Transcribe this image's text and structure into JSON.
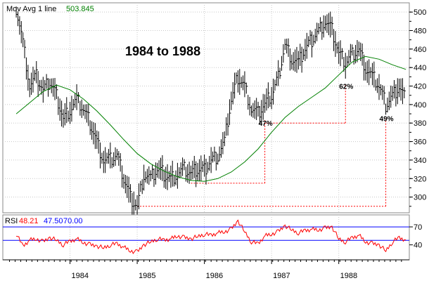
{
  "chart_data": [
    {
      "type": "line",
      "title": "1984 to 1988",
      "legend": {
        "label": "Mov Avg 1 line",
        "value": "503.845",
        "placement": "top-left"
      },
      "x_ticks": [
        "1984",
        "1985",
        "1986",
        "1987",
        "1988"
      ],
      "y_ticks": [
        "300",
        "320",
        "340",
        "360",
        "380",
        "400",
        "420",
        "440",
        "460",
        "480",
        "500"
      ],
      "ylim": [
        283,
        510
      ],
      "grid": true,
      "series": [
        {
          "name": "Mov Avg 1 line",
          "kind": "moving-average",
          "color": "#008000",
          "x": [
            1983.2,
            1983.4,
            1983.6,
            1983.8,
            1984.0,
            1984.2,
            1984.4,
            1984.6,
            1984.8,
            1985.0,
            1985.2,
            1985.4,
            1985.6,
            1985.8,
            1986.0,
            1986.2,
            1986.4,
            1986.6,
            1986.8,
            1987.0,
            1987.2,
            1987.4,
            1987.6,
            1987.8,
            1988.0,
            1988.2,
            1988.4,
            1988.6,
            1988.8,
            1989.0
          ],
          "values": [
            390,
            402,
            414,
            421,
            416,
            406,
            393,
            378,
            362,
            347,
            336,
            328,
            322,
            318,
            317,
            320,
            327,
            338,
            352,
            370,
            386,
            398,
            408,
            418,
            432,
            446,
            452,
            449,
            443,
            438
          ]
        },
        {
          "name": "Price",
          "kind": "bars",
          "color": "#000000",
          "x": [
            1983.2,
            1983.3,
            1983.4,
            1983.5,
            1983.6,
            1983.7,
            1983.8,
            1983.9,
            1984.0,
            1984.1,
            1984.2,
            1984.3,
            1984.4,
            1984.5,
            1984.6,
            1984.7,
            1984.8,
            1984.9,
            1985.0,
            1985.1,
            1985.2,
            1985.3,
            1985.4,
            1985.5,
            1985.6,
            1985.7,
            1985.8,
            1985.9,
            1986.0,
            1986.1,
            1986.2,
            1986.3,
            1986.4,
            1986.5,
            1986.6,
            1986.7,
            1986.8,
            1986.9,
            1987.0,
            1987.1,
            1987.2,
            1987.3,
            1987.4,
            1987.5,
            1987.6,
            1987.7,
            1987.8,
            1987.9,
            1988.0,
            1988.1,
            1988.2,
            1988.3,
            1988.4,
            1988.5,
            1988.6,
            1988.7,
            1988.8,
            1988.9,
            1989.0
          ],
          "values": [
            505,
            468,
            420,
            430,
            415,
            425,
            410,
            385,
            395,
            405,
            395,
            380,
            360,
            340,
            340,
            345,
            320,
            300,
            290,
            325,
            320,
            330,
            325,
            320,
            325,
            330,
            325,
            330,
            330,
            340,
            345,
            360,
            405,
            430,
            420,
            395,
            390,
            400,
            410,
            430,
            465,
            450,
            445,
            460,
            470,
            480,
            490,
            480,
            455,
            445,
            455,
            460,
            440,
            430,
            420,
            400,
            410,
            420,
            405
          ]
        }
      ],
      "annotations": [
        {
          "label": "47%",
          "x": 1986.9,
          "y": 380
        },
        {
          "label": "62%",
          "x": 1988.1,
          "y": 420
        },
        {
          "label": "49%",
          "x": 1988.7,
          "y": 385
        }
      ],
      "guides": [
        {
          "color": "#ff0000",
          "style": "dotted",
          "from": {
            "x": 1985.8,
            "y": 315
          },
          "to": {
            "x": 1986.9,
            "y": 315
          },
          "rise_to": 383
        },
        {
          "color": "#ff0000",
          "style": "dotted",
          "from": {
            "x": 1986.9,
            "y": 380
          },
          "to": {
            "x": 1988.1,
            "y": 380
          },
          "rise_to": 422
        },
        {
          "color": "#ff0000",
          "style": "dotted",
          "from": {
            "x": 1985.0,
            "y": 290
          },
          "to": {
            "x": 1988.7,
            "y": 290
          },
          "rise_to": 385
        }
      ]
    },
    {
      "type": "line",
      "title": "",
      "legend": {
        "label": "RSI",
        "values": [
          "48.21",
          "47.50",
          "70.00"
        ],
        "colors": [
          "#ff0000",
          "#0000ff",
          "#0000ff"
        ],
        "placement": "top-left"
      },
      "y_ticks": [
        "40",
        "70"
      ],
      "ylim": [
        15,
        90
      ],
      "reference_lines": [
        {
          "value": 70,
          "color": "#0000ff"
        },
        {
          "value": 47.5,
          "color": "#0000ff"
        }
      ],
      "series": [
        {
          "name": "RSI",
          "color": "#ff0000",
          "x": [
            1983.2,
            1983.3,
            1983.4,
            1983.5,
            1983.6,
            1983.7,
            1983.8,
            1983.9,
            1984.0,
            1984.1,
            1984.2,
            1984.3,
            1984.4,
            1984.5,
            1984.6,
            1984.7,
            1984.8,
            1984.9,
            1985.0,
            1985.1,
            1985.2,
            1985.3,
            1985.4,
            1985.5,
            1985.6,
            1985.7,
            1985.8,
            1985.9,
            1986.0,
            1986.1,
            1986.2,
            1986.3,
            1986.4,
            1986.5,
            1986.6,
            1986.7,
            1986.8,
            1986.9,
            1987.0,
            1987.1,
            1987.2,
            1987.3,
            1987.4,
            1987.5,
            1987.6,
            1987.7,
            1987.8,
            1987.9,
            1988.0,
            1988.1,
            1988.2,
            1988.3,
            1988.4,
            1988.5,
            1988.6,
            1988.7,
            1988.8,
            1988.9,
            1989.0
          ],
          "values": [
            58,
            38,
            48,
            50,
            45,
            52,
            48,
            40,
            46,
            50,
            44,
            40,
            38,
            35,
            40,
            42,
            36,
            30,
            28,
            40,
            45,
            50,
            48,
            50,
            55,
            52,
            50,
            54,
            58,
            56,
            60,
            62,
            66,
            80,
            62,
            45,
            42,
            55,
            58,
            62,
            72,
            65,
            60,
            64,
            66,
            65,
            68,
            70,
            50,
            45,
            52,
            56,
            45,
            42,
            40,
            30,
            45,
            52,
            48
          ]
        }
      ]
    }
  ]
}
